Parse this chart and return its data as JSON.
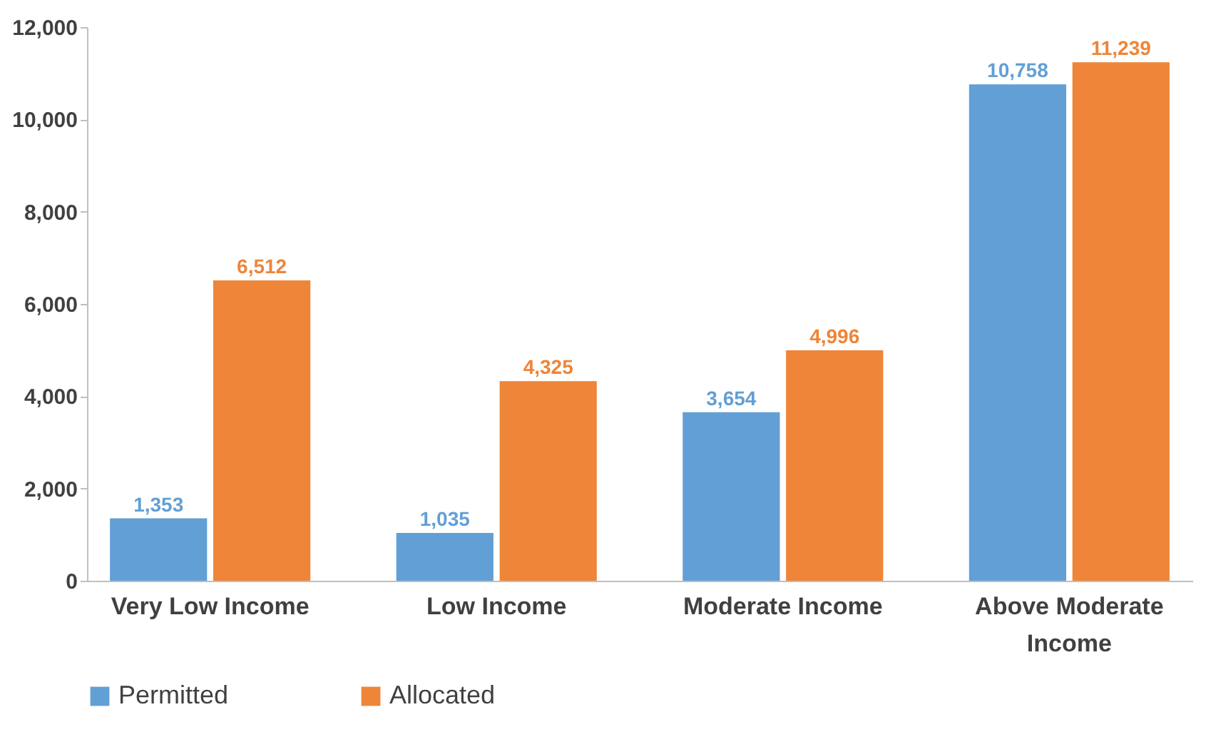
{
  "chart_data": {
    "type": "bar",
    "categories": [
      "Very Low Income",
      "Low Income",
      "Moderate Income",
      "Above Moderate Income"
    ],
    "series": [
      {
        "name": "Permitted",
        "color": "#629fd5",
        "values": [
          1353,
          1035,
          3654,
          10758
        ],
        "value_labels": [
          "1,353",
          "1,035",
          "3,654",
          "10,758"
        ]
      },
      {
        "name": "Allocated",
        "color": "#ee8538",
        "values": [
          6512,
          4325,
          4996,
          11239
        ],
        "value_labels": [
          "6,512",
          "4,325",
          "4,996",
          "11,239"
        ]
      }
    ],
    "ylim": [
      0,
      12000
    ],
    "yticks": [
      {
        "value": 0,
        "label": "0"
      },
      {
        "value": 2000,
        "label": "2,000"
      },
      {
        "value": 4000,
        "label": "4,000"
      },
      {
        "value": 6000,
        "label": "6,000"
      },
      {
        "value": 8000,
        "label": "8,000"
      },
      {
        "value": 10000,
        "label": "10,000"
      },
      {
        "value": 12000,
        "label": "12,000"
      }
    ],
    "grid": false,
    "legend": "bottom"
  }
}
